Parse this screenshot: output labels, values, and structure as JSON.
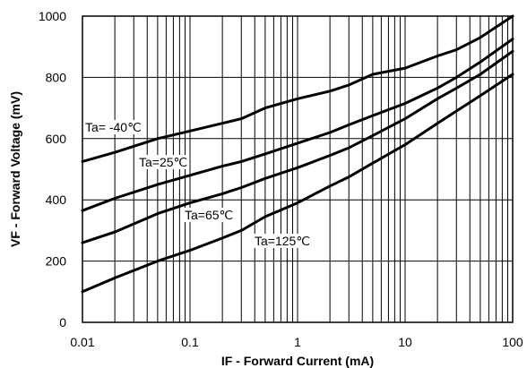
{
  "chart_data": {
    "type": "line",
    "title": "",
    "xlabel": "IF - Forward Current (mA)",
    "ylabel": "VF - Forward Voltage (mV)",
    "xscale": "log",
    "xlim": [
      0.01,
      100
    ],
    "ylim": [
      0,
      1000
    ],
    "grid": true,
    "x_tick_values": [
      0.01,
      0.1,
      1,
      10,
      100
    ],
    "x_tick_labels": [
      "0.01",
      "0.1",
      "1",
      "10",
      "100"
    ],
    "y_tick_values": [
      0,
      200,
      400,
      600,
      800,
      1000
    ],
    "y_tick_labels": [
      "0",
      "200",
      "400",
      "600",
      "800",
      "1000"
    ],
    "series": [
      {
        "name": "Ta= -40℃",
        "x": [
          0.01,
          0.02,
          0.05,
          0.1,
          0.2,
          0.3,
          0.5,
          1,
          2,
          3,
          5,
          10,
          20,
          30,
          50,
          100
        ],
        "y": [
          525,
          555,
          600,
          625,
          650,
          665,
          700,
          730,
          755,
          775,
          810,
          830,
          870,
          890,
          930,
          1000
        ]
      },
      {
        "name": "Ta=25℃",
        "x": [
          0.01,
          0.02,
          0.05,
          0.1,
          0.2,
          0.3,
          0.5,
          1,
          2,
          3,
          5,
          10,
          20,
          30,
          50,
          100
        ],
        "y": [
          365,
          405,
          450,
          480,
          510,
          525,
          550,
          585,
          620,
          645,
          675,
          715,
          765,
          800,
          850,
          925
        ]
      },
      {
        "name": "Ta=65℃",
        "x": [
          0.01,
          0.02,
          0.05,
          0.1,
          0.2,
          0.3,
          0.5,
          1,
          2,
          3,
          5,
          10,
          20,
          30,
          50,
          100
        ],
        "y": [
          260,
          295,
          355,
          390,
          420,
          440,
          470,
          505,
          545,
          570,
          610,
          665,
          730,
          765,
          810,
          885
        ]
      },
      {
        "name": "Ta=125℃",
        "x": [
          0.01,
          0.02,
          0.05,
          0.1,
          0.2,
          0.3,
          0.5,
          1,
          2,
          3,
          5,
          10,
          20,
          30,
          50,
          100
        ],
        "y": [
          100,
          145,
          200,
          235,
          275,
          300,
          345,
          390,
          445,
          475,
          520,
          580,
          650,
          690,
          740,
          810
        ]
      }
    ]
  }
}
